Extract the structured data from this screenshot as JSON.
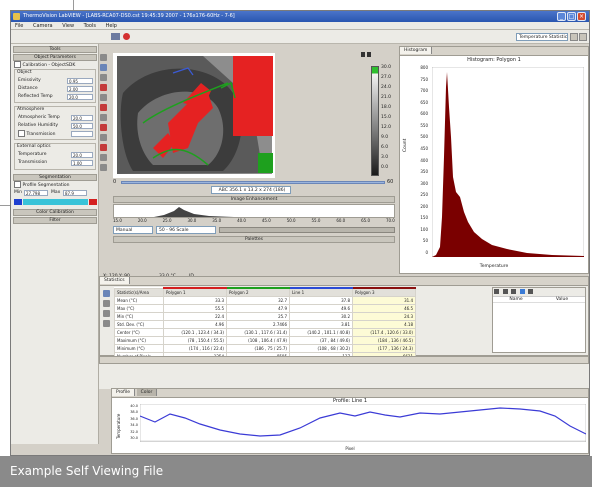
{
  "window": {
    "title": "ThermoVision LabVIEW - [LABS-RCA07-DS0.cst 19:45:39 2007 - 176x176-60Hz - 7-6]"
  },
  "menu": [
    "File",
    "Camera",
    "View",
    "Tools",
    "Help"
  ],
  "view_combo": "Temperature Statistics",
  "sidebar": {
    "tools_label": "Tools",
    "object_params_header": "Object Parameters",
    "use_calibration": "Calibration - ObjectSDK",
    "object": {
      "section": "Object",
      "emissivity_label": "Emissivity",
      "emissivity": "0.95",
      "distance_label": "Distance",
      "distance": "2.00",
      "reflected_label": "Reflected Temp",
      "reflected": "20.0"
    },
    "atm": {
      "section": "Atmosphere",
      "temp_label": "Atmospheric Temp",
      "temp": "20.0",
      "humidity_label": "Relative Humidity",
      "humidity": "50.0",
      "transmission_label": "Transmission"
    },
    "ext": {
      "section": "External optics",
      "temp_label": "Temperature",
      "temp": "20.0",
      "trans_label": "Transmission",
      "trans": "1.00"
    },
    "segmentation_header": "Segmentation",
    "profile_seg": "Profile Segmentation",
    "min_label": "Min",
    "min": "27.798",
    "max_label": "Max",
    "max": "87.9",
    "color_calibration": "Color Calibration",
    "filter_label": "Filter"
  },
  "image": {
    "size_label": "1/4",
    "info_line": "ABC 356.1 x 13.2 x 274 (186)",
    "slider_left": "0",
    "slider_right": "60",
    "histogram_header": "Image Enhancement",
    "scale_values": [
      "30.0",
      "27.0",
      "24.0",
      "21.0",
      "18.0",
      "15.0",
      "12.0",
      "9.0",
      "6.0",
      "3.0",
      "0.0"
    ],
    "enh_values": [
      "15.0",
      "20.0",
      "25.0",
      "30.0",
      "35.0",
      "40.0",
      "45.0",
      "50.0",
      "55.0",
      "60.0",
      "65.0",
      "70.0"
    ],
    "enh_mode_label": "Manual",
    "enh_mode_value": "50 - 96 Scale",
    "palette_label": "Palettes",
    "status_left": "X: 120 Y: 90",
    "status_mid": "33.0 °C",
    "status_right": "ID"
  },
  "histogram_panel": {
    "tab": "Histogram",
    "title": "Histogram: Polygon 1",
    "ylabel": "Count",
    "xlabel": "Temperature",
    "y_ticks": [
      "800",
      "750",
      "700",
      "650",
      "600",
      "550",
      "500",
      "450",
      "400",
      "350",
      "300",
      "250",
      "200",
      "150",
      "100",
      "50",
      "0"
    ]
  },
  "stats": {
    "tab": "Statistics",
    "columns": [
      "Statistic(s)/Area",
      "Polygon 1",
      "Polygon 2",
      "Line 1",
      "Polygon 3"
    ],
    "rows": [
      [
        "Mean (°C)",
        "33.3",
        "32.7",
        "37.8",
        "31.4"
      ],
      [
        "Max (°C)",
        "55.5",
        "47.9",
        "49.6",
        "46.5"
      ],
      [
        "Min (°C)",
        "22.4",
        "25.7",
        "30.2",
        "24.3"
      ],
      [
        "Std. Dev. (°C)",
        "4.96",
        "2.7466",
        "3.81",
        "4.18"
      ],
      [
        "Center (°C)",
        "(120.1 , 123.4 / 34.3)",
        "(130.1 , 117.6 / 31.4)",
        "(140.2 , 101.1 / 40.8)",
        "(117.4 , 120.6 / 33.0)"
      ],
      [
        "Maximum (°C)",
        "(78 , 150.4 / 55.5)",
        "(108 , 106.4 / 47.9)",
        "(37 , 84 / 49.6)",
        "(184 , 136 / 46.5)"
      ],
      [
        "Minimum (°C)",
        "(174 , 116 / 22.4)",
        "(186 , 75 / 25.7)",
        "(108 , 68 / 30.2)",
        "(177 , 136 / 24.3)"
      ],
      [
        "Number of Pixels",
        "1254",
        "8595",
        "137",
        "6621"
      ]
    ],
    "side_cols": [
      "Name",
      "Value"
    ]
  },
  "profile": {
    "tabs": [
      "Profile",
      "Color"
    ],
    "title": "Profile: Line 1",
    "ylabel": "Temperature",
    "xlabel": "Pixel",
    "y_ticks": [
      "40.0",
      "38.0",
      "36.0",
      "34.0",
      "32.0",
      "30.0"
    ]
  },
  "caption": "Example Self Viewing File",
  "colors": {
    "title_bar": "#2a56b0",
    "histogram_fill": "#7a0000",
    "profile_line": "#3b3bd6",
    "footer": "#8a8a8a",
    "polygon_red": "#e02020"
  }
}
